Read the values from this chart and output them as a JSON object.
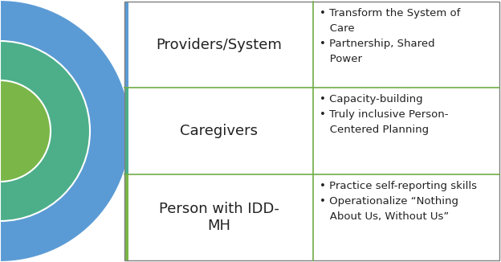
{
  "bg_color": "#ffffff",
  "border_color": "#7f7f7f",
  "row_line_color": "#70ad47",
  "circle_colors": [
    "#5b9bd5",
    "#4caf8a",
    "#7ab648"
  ],
  "labels": [
    "Providers/System",
    "Caregivers",
    "Person with IDD-\nMH"
  ],
  "label_fontsize": 13,
  "bullet_texts": [
    "• Transform the System of\n   Care\n• Partnership, Shared\n   Power",
    "• Capacity-building\n• Truly inclusive Person-\n   Centered Planning",
    "• Practice self-reporting skills\n• Operationalize “Nothing\n   About Us, Without Us”"
  ],
  "bullet_fontsize": 9.5,
  "text_color": "#222222",
  "fig_width": 6.24,
  "fig_height": 3.26,
  "dpi": 100
}
